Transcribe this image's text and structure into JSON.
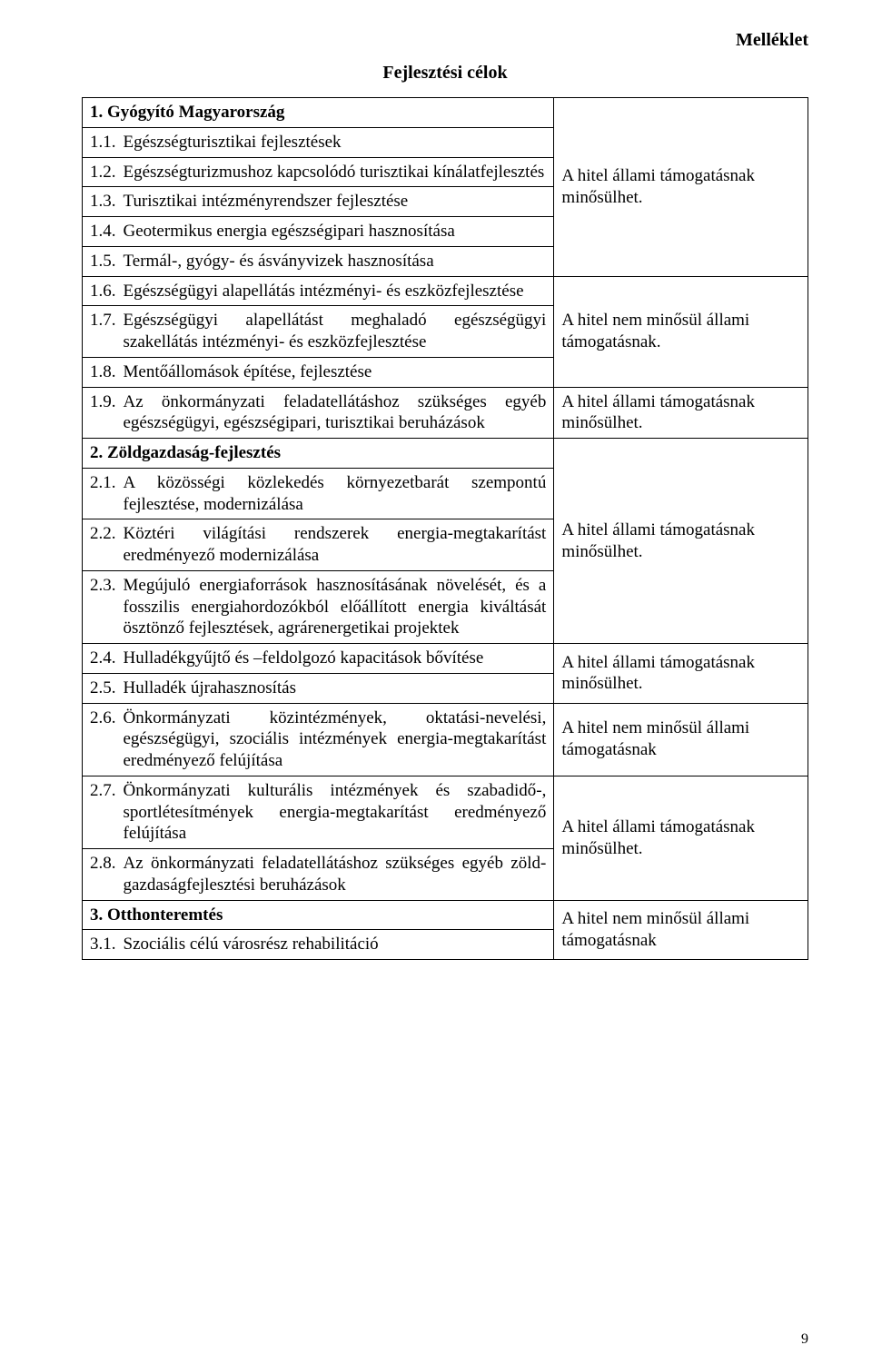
{
  "corner_label": "Melléklet",
  "page_title": "Fejlesztési célok",
  "page_number": "9",
  "status": {
    "may_qualify": "A hitel állami támogatásnak minősülhet.",
    "not_qualify_dot": "A hitel nem minősül állami támogatásnak.",
    "not_qualify": "A hitel nem minősül állami támogatásnak"
  },
  "sections": {
    "s1": {
      "title": "1. Gyógyító Magyarország",
      "r1": {
        "num": "1.1.",
        "text": "Egészségturisztikai fejlesztések"
      },
      "r2": {
        "num": "1.2.",
        "text": "Egészségturizmushoz kapcsolódó turisztikai kínálatfejlesztés"
      },
      "r3": {
        "num": "1.3.",
        "text": "Turisztikai intézményrendszer fejlesztése"
      },
      "r4": {
        "num": "1.4.",
        "text": "Geotermikus energia egészségipari hasznosítása"
      },
      "r5": {
        "num": "1.5.",
        "text": "Termál-, gyógy- és ásványvizek hasznosítása"
      },
      "r6": {
        "num": "1.6.",
        "text": "Egészségügyi alapellátás intézményi- és eszközfejlesztése"
      },
      "r7": {
        "num": "1.7.",
        "text": "Egészségügyi alapellátást meghaladó egészségügyi szakellátás intézményi- és eszközfejlesztése"
      },
      "r8": {
        "num": "1.8.",
        "text": "Mentőállomások építése, fejlesztése"
      },
      "r9": {
        "num": "1.9.",
        "text": "Az önkormányzati feladatellátáshoz szükséges egyéb egészségügyi, egészségipari, turisztikai beruházások"
      }
    },
    "s2": {
      "title": "2. Zöldgazdaság-fejlesztés",
      "r1": {
        "num": "2.1.",
        "text": "A közösségi közlekedés környezetbarát szempontú fejlesztése, modernizálása"
      },
      "r2": {
        "num": "2.2.",
        "text": "Köztéri világítási rendszerek energia-megtakarítást eredményező modernizálása"
      },
      "r3": {
        "num": "2.3.",
        "text": "Megújuló energiaforrások hasznosításának növelését, és a fosszilis energiahordozókból előállított energia kiváltását ösztönző fejlesztések, agrárenergetikai projektek"
      },
      "r4": {
        "num": "2.4.",
        "text": "Hulladékgyűjtő és –feldolgozó kapacitások bővítése"
      },
      "r5": {
        "num": "2.5.",
        "text": "Hulladék újrahasznosítás"
      },
      "r6": {
        "num": "2.6.",
        "text": "Önkormányzati közintézmények, oktatási-nevelési, egészségügyi, szociális intézmények energia-megtakarítást eredményező felújítása"
      },
      "r7": {
        "num": "2.7.",
        "text": "Önkormányzati kulturális intézmények és szabadidő-, sportlétesítmények energia-megtakarítást eredményező felújítása"
      },
      "r8": {
        "num": "2.8.",
        "text": "Az önkormányzati feladatellátáshoz szükséges egyéb zöld-gazdaságfejlesztési beruházások"
      }
    },
    "s3": {
      "title": "3. Otthonteremtés",
      "r1": {
        "num": "3.1.",
        "text": "Szociális célú városrész rehabilitáció"
      }
    }
  }
}
